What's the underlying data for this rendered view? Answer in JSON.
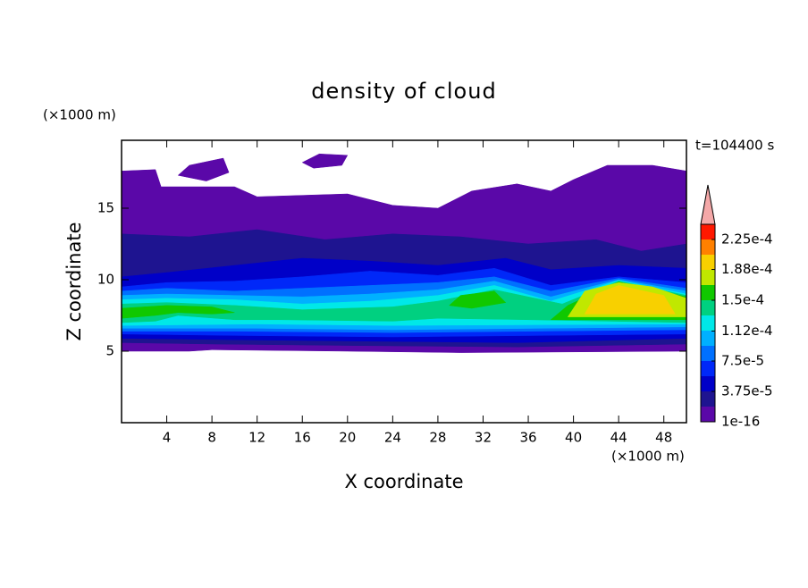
{
  "chart_data": {
    "type": "contour",
    "title": "density of cloud",
    "xlabel": "X coordinate",
    "ylabel": "Z coordinate",
    "x_unit": "(×1000 m)",
    "y_unit": "(×1000 m)",
    "time_label": "t=104400 s",
    "xlim": [
      0,
      50
    ],
    "ylim": [
      0,
      19.75
    ],
    "xticks": [
      4,
      8,
      12,
      16,
      20,
      24,
      28,
      32,
      36,
      40,
      44,
      48
    ],
    "yticks": [
      5,
      10,
      15
    ],
    "colorbar": {
      "clim": [
        1e-16,
        0.00024375
      ],
      "colors": [
        "#5a08a8",
        "#1e1490",
        "#0000c8",
        "#0028f8",
        "#0070ff",
        "#00b0ff",
        "#00e8e8",
        "#00d080",
        "#10c800",
        "#c0e800",
        "#f8d000",
        "#ff8000",
        "#ff1800"
      ],
      "extend_color": "#f4a8a8",
      "ticks": [
        {
          "value": 1e-16,
          "label": "1e-16"
        },
        {
          "value": 3.75e-05,
          "label": "3.75e-5"
        },
        {
          "value": 7.5e-05,
          "label": "7.5e-5"
        },
        {
          "value": 0.000112,
          "label": "1.12e-4"
        },
        {
          "value": 0.00015,
          "label": "1.5e-4"
        },
        {
          "value": 0.000188,
          "label": "1.88e-4"
        },
        {
          "value": 0.000225,
          "label": "2.25e-4"
        }
      ]
    }
  }
}
